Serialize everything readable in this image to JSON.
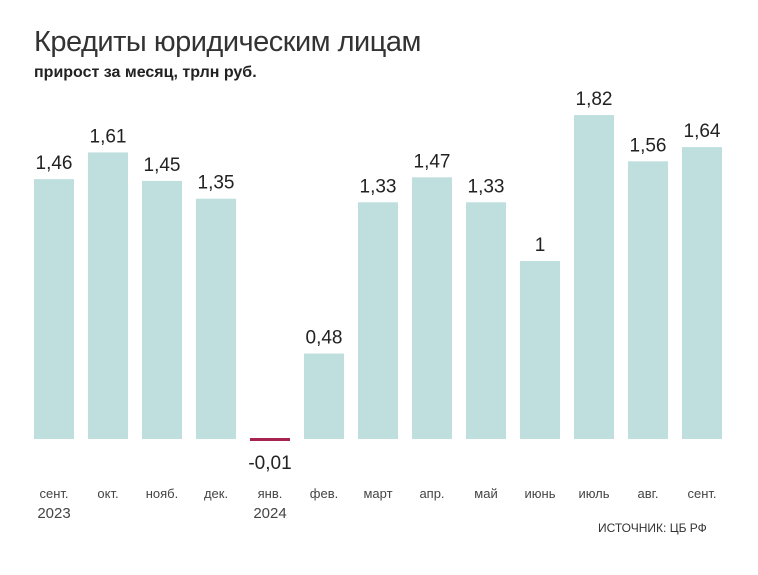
{
  "chart_data": {
    "type": "bar",
    "title": "Кредиты юридическим лицам",
    "subtitle": "прирост за месяц, трлн руб.",
    "source": "ИСТОЧНИК: ЦБ РФ",
    "categories": [
      [
        "сент.",
        "2023"
      ],
      [
        "окт."
      ],
      [
        "нояб."
      ],
      [
        "дек."
      ],
      [
        "янв.",
        "2024"
      ],
      [
        "фев."
      ],
      [
        "март"
      ],
      [
        "апр."
      ],
      [
        "май"
      ],
      [
        "июнь"
      ],
      [
        "июль"
      ],
      [
        "авг."
      ],
      [
        "сент."
      ]
    ],
    "values": [
      1.46,
      1.61,
      1.45,
      1.35,
      -0.01,
      0.48,
      1.33,
      1.47,
      1.33,
      1,
      1.82,
      1.56,
      1.64
    ],
    "labels": [
      "1,46",
      "1,61",
      "1,45",
      "1,35",
      "-0,01",
      "0,48",
      "1,33",
      "1,47",
      "1,33",
      "1",
      "1,82",
      "1,56",
      "1,64"
    ],
    "xlabel": "",
    "ylabel": "",
    "grid": false,
    "colors": {
      "positive": "#bfdfdf",
      "negative": "#a8234f"
    }
  }
}
